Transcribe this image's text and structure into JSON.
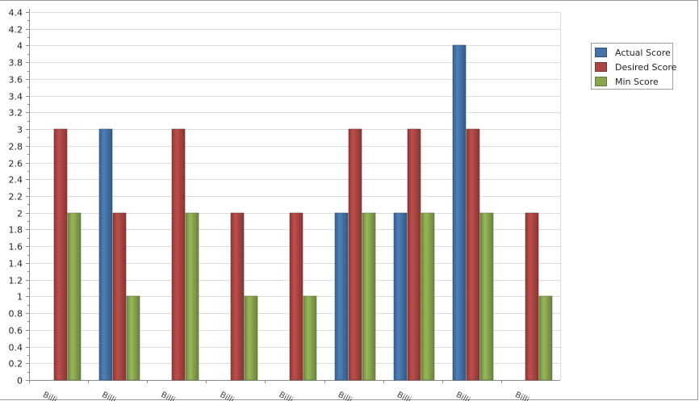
{
  "chart_data": {
    "type": "bar",
    "categories": [
      "Billi",
      "Billi",
      "Billi",
      "Billi",
      "Billi",
      "Billi",
      "Billi",
      "Billi",
      "Billi"
    ],
    "series": [
      {
        "name": "Actual Score",
        "color": "#4572a7",
        "values": [
          0,
          3,
          0,
          0,
          0,
          2,
          2,
          4,
          0
        ]
      },
      {
        "name": "Desired Score",
        "color": "#aa4643",
        "values": [
          3,
          2,
          3,
          2,
          2,
          3,
          3,
          3,
          2
        ]
      },
      {
        "name": "Min Score",
        "color": "#89a54e",
        "values": [
          2,
          1,
          2,
          1,
          1,
          2,
          2,
          2,
          1
        ]
      }
    ],
    "yticks": [
      "0",
      "0.2",
      "0.4",
      "0.6",
      "0.8",
      "1",
      "1.2",
      "1.4",
      "1.6",
      "1.8",
      "2",
      "2.2",
      "2.4",
      "2.6",
      "2.8",
      "3",
      "3.2",
      "3.4",
      "3.6",
      "3.8",
      "4",
      "4.2",
      "4.4"
    ],
    "ylim": [
      0,
      4.4
    ],
    "grid": true,
    "legend_position": "top-right"
  }
}
